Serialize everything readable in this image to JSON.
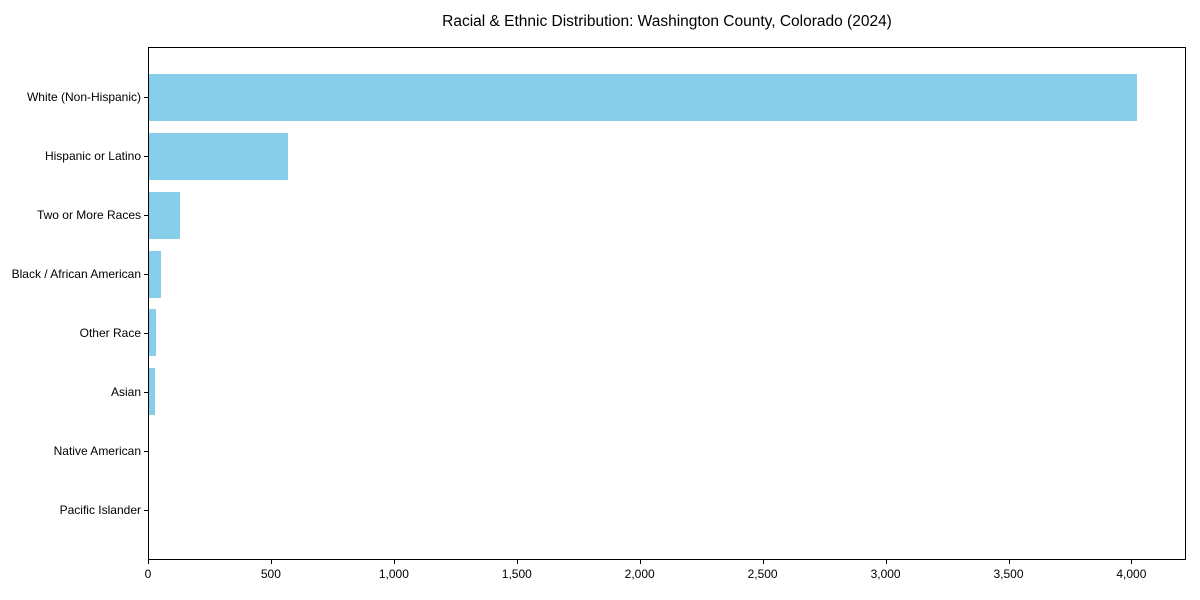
{
  "chart_data": {
    "type": "bar",
    "orientation": "horizontal",
    "title": "Racial & Ethnic Distribution: Washington County, Colorado (2024)",
    "xlabel": "",
    "ylabel": "",
    "categories": [
      "White (Non-Hispanic)",
      "Hispanic or Latino",
      "Two or More Races",
      "Black / African American",
      "Other Race",
      "Asian",
      "Native American",
      "Pacific Islander"
    ],
    "values": [
      4020,
      566,
      127,
      50,
      30,
      26,
      0,
      0
    ],
    "bar_color": "#87CEEB",
    "axis_color": "#000000",
    "text_color": "#000000",
    "background_color": "#ffffff",
    "xlim": [
      0,
      4222
    ],
    "xticks": [
      0,
      500,
      1000,
      1500,
      2000,
      2500,
      3000,
      3500,
      4000
    ],
    "xtick_labels": [
      "0",
      "500",
      "1,000",
      "1,500",
      "2,000",
      "2,500",
      "3,000",
      "3,500",
      "4,000"
    ],
    "grid": false,
    "legend": null
  }
}
